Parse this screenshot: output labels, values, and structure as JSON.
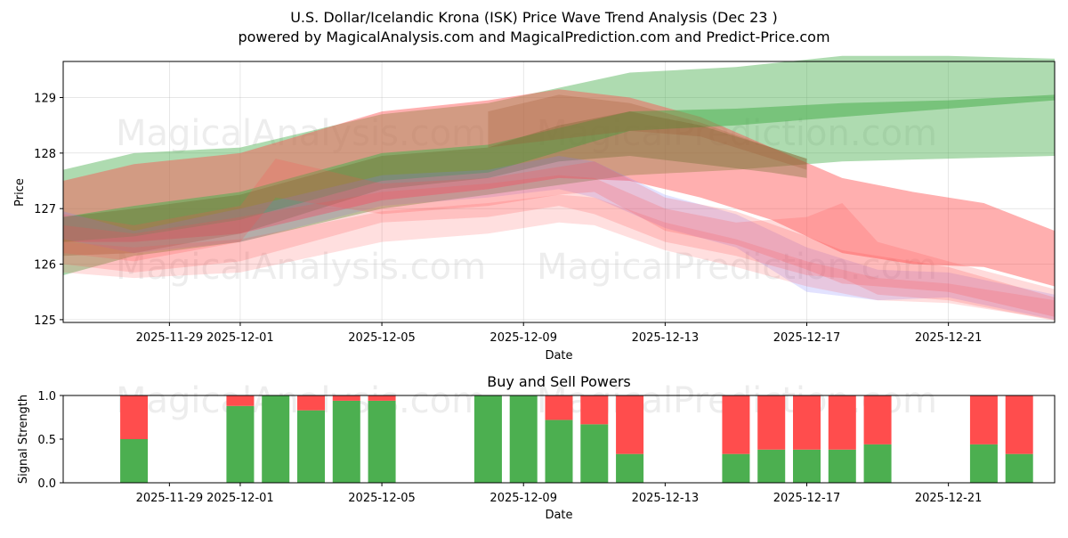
{
  "figure": {
    "title_line1": "U.S. Dollar/Icelandic Krona (ISK) Price Wave Trend Analysis (Dec 23 )",
    "title_line2": "powered by MagicalAnalysis.com and MagicalPrediction.com and Predict-Price.com",
    "watermarks": [
      "MagicalAnalysis.com",
      "MagicalPrediction.com",
      "MagicalAnalysis.com",
      "MagicalPrediction.com",
      "MagicalAnalysis.com",
      "MagicalPrediction.com"
    ]
  },
  "colors": {
    "green": "#4caf50",
    "red": "#ff4d4d",
    "blue": "#7a7aff",
    "olive": "#6b6b2a",
    "brown": "#a0522d"
  },
  "chart_data": [
    {
      "type": "area",
      "title": "",
      "xlabel": "Date",
      "ylabel": "Price",
      "x_domain": [
        "2025-11-26",
        "2025-12-24"
      ],
      "ylim": [
        124.95,
        129.65
      ],
      "x_ticks": [
        {
          "date": "2025-11-29",
          "label": "2025-11-29"
        },
        {
          "date": "2025-12-01",
          "label": "2025-12-01"
        },
        {
          "date": "2025-12-05",
          "label": "2025-12-05"
        },
        {
          "date": "2025-12-09",
          "label": "2025-12-09"
        },
        {
          "date": "2025-12-13",
          "label": "2025-12-13"
        },
        {
          "date": "2025-12-17",
          "label": "2025-12-17"
        },
        {
          "date": "2025-12-21",
          "label": "2025-12-21"
        }
      ],
      "y_ticks": [
        125,
        126,
        127,
        128,
        129
      ],
      "grid": true,
      "bands": [
        {
          "name": "green wide forecast",
          "color": "green",
          "opacity": 0.45,
          "x": [
            "2025-11-26",
            "2025-11-28",
            "2025-12-01",
            "2025-12-05",
            "2025-12-08",
            "2025-12-12",
            "2025-12-15",
            "2025-12-18",
            "2025-12-21",
            "2025-12-24"
          ],
          "upper": [
            127.7,
            128.0,
            128.1,
            128.7,
            128.9,
            129.45,
            129.55,
            129.75,
            129.75,
            129.7
          ],
          "lower": [
            125.8,
            126.15,
            126.4,
            127.0,
            127.25,
            127.6,
            127.7,
            127.85,
            127.9,
            127.95
          ]
        },
        {
          "name": "red wide forecast",
          "color": "red",
          "opacity": 0.45,
          "x": [
            "2025-11-26",
            "2025-11-28",
            "2025-12-01",
            "2025-12-05",
            "2025-12-08",
            "2025-12-10",
            "2025-12-12",
            "2025-12-14",
            "2025-12-16",
            "2025-12-18",
            "2025-12-20",
            "2025-12-22",
            "2025-12-24"
          ],
          "upper": [
            127.5,
            127.8,
            128.0,
            128.75,
            128.95,
            129.15,
            129.0,
            128.65,
            128.1,
            127.55,
            127.3,
            127.1,
            126.6
          ],
          "lower": [
            126.4,
            126.4,
            126.55,
            127.15,
            127.35,
            127.55,
            127.5,
            127.2,
            126.8,
            126.2,
            126.0,
            125.95,
            125.6
          ]
        },
        {
          "name": "green core band",
          "color": "green",
          "opacity": 0.55,
          "x": [
            "2025-11-26",
            "2025-11-28",
            "2025-12-01",
            "2025-12-05",
            "2025-12-08",
            "2025-12-12",
            "2025-12-15",
            "2025-12-18",
            "2025-12-21",
            "2025-12-24"
          ],
          "upper": [
            126.85,
            127.05,
            127.3,
            128.0,
            128.15,
            128.75,
            128.8,
            128.9,
            128.95,
            129.05
          ],
          "lower": [
            126.4,
            126.5,
            126.8,
            127.5,
            127.65,
            128.4,
            128.5,
            128.65,
            128.8,
            128.95
          ]
        },
        {
          "name": "olive overlap band",
          "color": "olive",
          "opacity": 0.35,
          "x": [
            "2025-11-26",
            "2025-11-28",
            "2025-12-01",
            "2025-12-05",
            "2025-12-08",
            "2025-12-10",
            "2025-12-12",
            "2025-12-14",
            "2025-12-16",
            "2025-12-17"
          ],
          "upper": [
            126.85,
            127.0,
            127.25,
            127.95,
            128.1,
            128.5,
            128.75,
            128.5,
            128.1,
            127.9
          ],
          "lower": [
            126.15,
            126.2,
            126.55,
            127.35,
            127.55,
            127.85,
            127.95,
            127.8,
            127.65,
            127.55
          ]
        },
        {
          "name": "blue price band",
          "color": "blue",
          "opacity": 0.22,
          "x": [
            "2025-11-26",
            "2025-11-28",
            "2025-12-01",
            "2025-12-05",
            "2025-12-08",
            "2025-12-10",
            "2025-12-11",
            "2025-12-13",
            "2025-12-15",
            "2025-12-17",
            "2025-12-19",
            "2025-12-21",
            "2025-12-24"
          ],
          "upper": [
            126.95,
            126.6,
            127.0,
            127.6,
            127.7,
            127.95,
            127.85,
            127.25,
            126.9,
            126.3,
            125.9,
            125.85,
            125.45
          ],
          "lower": [
            126.45,
            126.2,
            126.4,
            127.05,
            127.2,
            127.35,
            127.2,
            126.65,
            126.3,
            125.5,
            125.35,
            125.4,
            125.0
          ]
        },
        {
          "name": "red price band 1",
          "color": "red",
          "opacity": 0.22,
          "x": [
            "2025-11-26",
            "2025-11-28",
            "2025-12-01",
            "2025-12-02",
            "2025-12-05",
            "2025-12-08",
            "2025-12-10",
            "2025-12-11",
            "2025-12-13",
            "2025-12-15",
            "2025-12-17",
            "2025-12-18",
            "2025-12-21",
            "2025-12-24"
          ],
          "upper": [
            126.9,
            126.7,
            127.05,
            127.9,
            127.45,
            127.55,
            127.75,
            127.85,
            127.2,
            126.95,
            126.5,
            126.25,
            125.95,
            125.4
          ],
          "lower": [
            126.2,
            126.05,
            126.4,
            127.2,
            126.9,
            127.05,
            127.25,
            127.3,
            126.6,
            126.35,
            125.9,
            125.65,
            125.5,
            125.05
          ]
        },
        {
          "name": "red price band 2",
          "color": "red",
          "opacity": 0.2,
          "x": [
            "2025-11-26",
            "2025-11-28",
            "2025-12-01",
            "2025-12-05",
            "2025-12-08",
            "2025-12-10",
            "2025-12-11",
            "2025-12-13",
            "2025-12-15",
            "2025-12-17",
            "2025-12-18",
            "2025-12-19",
            "2025-12-21",
            "2025-12-24"
          ],
          "upper": [
            126.7,
            126.55,
            126.85,
            127.3,
            127.45,
            127.6,
            127.55,
            127.0,
            126.75,
            126.85,
            127.1,
            126.4,
            126.05,
            125.55
          ],
          "lower": [
            126.0,
            125.85,
            126.05,
            126.75,
            126.85,
            127.05,
            126.9,
            126.4,
            126.15,
            125.8,
            125.75,
            125.45,
            125.35,
            124.98
          ]
        },
        {
          "name": "red price band 3",
          "color": "red",
          "opacity": 0.18,
          "x": [
            "2025-11-26",
            "2025-11-28",
            "2025-12-01",
            "2025-12-05",
            "2025-12-08",
            "2025-12-10",
            "2025-12-11",
            "2025-12-13",
            "2025-12-15",
            "2025-12-17",
            "2025-12-19",
            "2025-12-21",
            "2025-12-24"
          ],
          "upper": [
            126.4,
            126.3,
            126.45,
            126.95,
            127.1,
            127.25,
            127.2,
            126.75,
            126.45,
            126.05,
            125.75,
            125.65,
            125.35
          ],
          "lower": [
            125.85,
            125.75,
            125.85,
            126.4,
            126.55,
            126.75,
            126.7,
            126.25,
            125.95,
            125.6,
            125.35,
            125.3,
            125.0
          ]
        },
        {
          "name": "brown overlap band",
          "color": "brown",
          "opacity": 0.25,
          "x": [
            "2025-12-08",
            "2025-12-10",
            "2025-12-12",
            "2025-12-14",
            "2025-12-16",
            "2025-12-17"
          ],
          "upper": [
            128.75,
            129.05,
            128.9,
            128.55,
            128.1,
            127.9
          ],
          "lower": [
            128.1,
            128.25,
            128.4,
            128.3,
            127.9,
            127.7
          ]
        }
      ]
    },
    {
      "type": "bar",
      "title": "Buy and Sell Powers",
      "xlabel": "Date",
      "ylabel": "Signal Strength",
      "ylim": [
        0,
        1
      ],
      "y_ticks": [
        {
          "value": 0,
          "label": "0.0"
        },
        {
          "value": 0.5,
          "label": "0.5"
        },
        {
          "value": 1,
          "label": "1.0"
        }
      ],
      "x_ticks": [
        {
          "date": "2025-11-29",
          "label": "2025-11-29"
        },
        {
          "date": "2025-12-01",
          "label": "2025-12-01"
        },
        {
          "date": "2025-12-05",
          "label": "2025-12-05"
        },
        {
          "date": "2025-12-09",
          "label": "2025-12-09"
        },
        {
          "date": "2025-12-13",
          "label": "2025-12-13"
        },
        {
          "date": "2025-12-17",
          "label": "2025-12-17"
        },
        {
          "date": "2025-12-21",
          "label": "2025-12-21"
        }
      ],
      "series": [
        {
          "name": "Buy",
          "color": "green"
        },
        {
          "name": "Sell",
          "color": "red"
        }
      ],
      "bars": [
        {
          "date": "2025-11-28",
          "buy": 0.5,
          "sell": 0.5
        },
        {
          "date": "2025-12-01",
          "buy": 0.88,
          "sell": 0.12
        },
        {
          "date": "2025-12-02",
          "buy": 1.0,
          "sell": 0.0
        },
        {
          "date": "2025-12-03",
          "buy": 0.83,
          "sell": 0.17
        },
        {
          "date": "2025-12-04",
          "buy": 0.94,
          "sell": 0.06
        },
        {
          "date": "2025-12-05",
          "buy": 0.94,
          "sell": 0.06
        },
        {
          "date": "2025-12-08",
          "buy": 1.0,
          "sell": 0.0
        },
        {
          "date": "2025-12-09",
          "buy": 1.0,
          "sell": 0.0
        },
        {
          "date": "2025-12-10",
          "buy": 0.72,
          "sell": 0.28
        },
        {
          "date": "2025-12-11",
          "buy": 0.67,
          "sell": 0.33
        },
        {
          "date": "2025-12-12",
          "buy": 0.33,
          "sell": 0.67
        },
        {
          "date": "2025-12-15",
          "buy": 0.33,
          "sell": 0.67
        },
        {
          "date": "2025-12-16",
          "buy": 0.38,
          "sell": 0.62
        },
        {
          "date": "2025-12-17",
          "buy": 0.38,
          "sell": 0.62
        },
        {
          "date": "2025-12-18",
          "buy": 0.38,
          "sell": 0.62
        },
        {
          "date": "2025-12-19",
          "buy": 0.44,
          "sell": 0.56
        },
        {
          "date": "2025-12-22",
          "buy": 0.44,
          "sell": 0.56
        },
        {
          "date": "2025-12-23",
          "buy": 0.33,
          "sell": 0.67
        }
      ]
    }
  ]
}
